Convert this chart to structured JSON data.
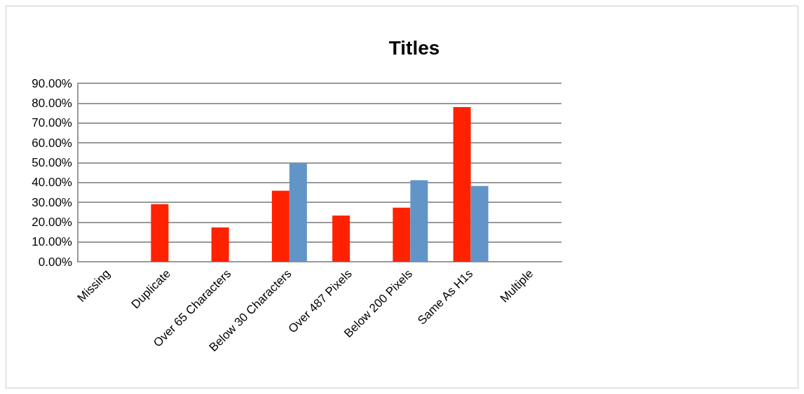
{
  "chart_data": {
    "type": "bar",
    "title": "Titles",
    "categories": [
      "Missing",
      "Duplicate",
      "Over 65 Characters",
      "Below 30 Characters",
      "Over 487 Pixels",
      "Below 200 Pixels",
      "Same As H1s",
      "Multiple"
    ],
    "series": [
      {
        "color": "#ff2200",
        "values": [
          0,
          29,
          17.3,
          35.8,
          23.3,
          27.3,
          78,
          0
        ]
      },
      {
        "color": "#6195c8",
        "values": [
          0,
          0,
          0,
          49.8,
          0,
          41.1,
          38.2,
          0
        ]
      }
    ],
    "ylim": [
      0,
      90
    ],
    "yticks": [
      {
        "value": 0,
        "label": "0.00%"
      },
      {
        "value": 10,
        "label": "10.00%"
      },
      {
        "value": 20,
        "label": "20.00%"
      },
      {
        "value": 30,
        "label": "30.00%"
      },
      {
        "value": 40,
        "label": "40.00%"
      },
      {
        "value": 50,
        "label": "50.00%"
      },
      {
        "value": 60,
        "label": "60.00%"
      },
      {
        "value": 70,
        "label": "70.00%"
      },
      {
        "value": 80,
        "label": "80.00%"
      },
      {
        "value": 90,
        "label": "90.00%"
      }
    ],
    "grid": "y"
  }
}
